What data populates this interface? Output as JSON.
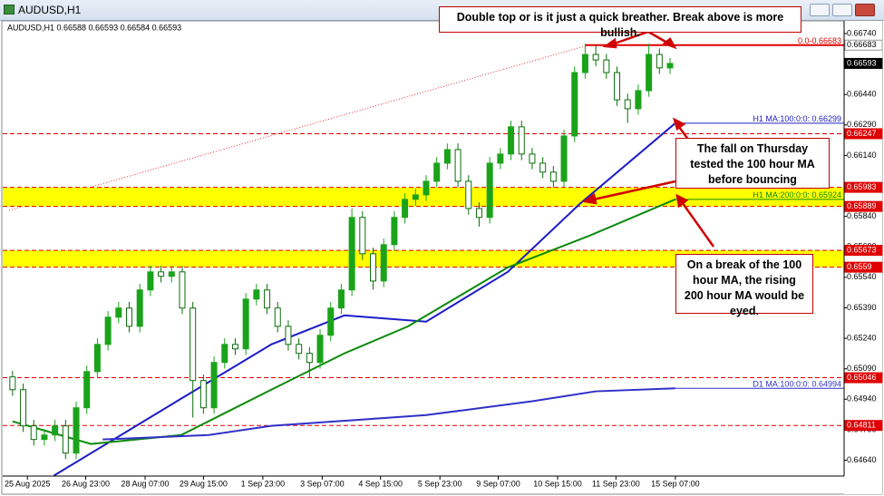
{
  "window": {
    "title": "AUDUSD,H1"
  },
  "chart_data": {
    "type": "candlestick",
    "symbol_info": "AUDUSD,H1  0.66588 0.66593 0.66584 0.66593",
    "up_color": "#1aa31a",
    "down_color": "#0b6e0b",
    "xlim": [
      -0.5,
      78.5
    ],
    "ylim": [
      0.64495,
      0.66807
    ],
    "yticks": [
      {
        "value": 0.6674,
        "label": "0.66740"
      },
      {
        "value": 0.6659,
        "label": "0.66590"
      },
      {
        "value": 0.6644,
        "label": "0.66440"
      },
      {
        "value": 0.6629,
        "label": "0.66290"
      },
      {
        "value": 0.6614,
        "label": "0.66140"
      },
      {
        "value": 0.6599,
        "label": "0.65990"
      },
      {
        "value": 0.6584,
        "label": "0.65840"
      },
      {
        "value": 0.6569,
        "label": "0.65690"
      },
      {
        "value": 0.6554,
        "label": "0.65540"
      },
      {
        "value": 0.6539,
        "label": "0.65390"
      },
      {
        "value": 0.6524,
        "label": "0.65240"
      },
      {
        "value": 0.6509,
        "label": "0.65090"
      },
      {
        "value": 0.6494,
        "label": "0.64940"
      },
      {
        "value": 0.6479,
        "label": "0.64790"
      },
      {
        "value": 0.6464,
        "label": "0.64640"
      }
    ],
    "xticks": [
      {
        "value": 1.4,
        "label": "25 Aug 2025"
      },
      {
        "value": 6.9,
        "label": "26 Aug 23:00"
      },
      {
        "value": 12.5,
        "label": "28 Aug 07:00"
      },
      {
        "value": 18,
        "label": "29 Aug 15:00"
      },
      {
        "value": 23.6,
        "label": "1 Sep 23:00"
      },
      {
        "value": 29.2,
        "label": "3 Sep 07:00"
      },
      {
        "value": 34.7,
        "label": "4 Sep 15:00"
      },
      {
        "value": 40.3,
        "label": "5 Sep 23:00"
      },
      {
        "value": 45.8,
        "label": "9 Sep 07:00"
      },
      {
        "value": 51.4,
        "label": "10 Sep 15:00"
      },
      {
        "value": 56.9,
        "label": "11 Sep 23:00"
      },
      {
        "value": 62.5,
        "label": "15 Sep 07:00"
      }
    ],
    "candles": [
      [
        0.6505,
        0.6508,
        0.64957,
        0.64987
      ],
      [
        0.64987,
        0.65017,
        0.64779,
        0.64809
      ],
      [
        0.64809,
        0.64839,
        0.64712,
        0.64742
      ],
      [
        0.64742,
        0.64794,
        0.64712,
        0.64764
      ],
      [
        0.64764,
        0.64839,
        0.64734,
        0.64809
      ],
      [
        0.64809,
        0.64839,
        0.64645,
        0.64675
      ],
      [
        0.64675,
        0.64928,
        0.64645,
        0.64898
      ],
      [
        0.64898,
        0.65106,
        0.64868,
        0.65076
      ],
      [
        0.65076,
        0.6524,
        0.65046,
        0.6521
      ],
      [
        0.6521,
        0.65374,
        0.6518,
        0.65344
      ],
      [
        0.65344,
        0.65419,
        0.65314,
        0.65389
      ],
      [
        0.65389,
        0.65419,
        0.65269,
        0.65299
      ],
      [
        0.65299,
        0.65508,
        0.65269,
        0.65478
      ],
      [
        0.65478,
        0.65597,
        0.65448,
        0.65567
      ],
      [
        0.65567,
        0.65597,
        0.65515,
        0.65545
      ],
      [
        0.65545,
        0.65597,
        0.65515,
        0.65567
      ],
      [
        0.65567,
        0.65597,
        0.65359,
        0.65389
      ],
      [
        0.65389,
        0.65419,
        0.6485,
        0.65032
      ],
      [
        0.65032,
        0.65062,
        0.64868,
        0.64898
      ],
      [
        0.64898,
        0.65151,
        0.64868,
        0.65121
      ],
      [
        0.65121,
        0.6524,
        0.65091,
        0.6521
      ],
      [
        0.6521,
        0.6524,
        0.65158,
        0.65188
      ],
      [
        0.65188,
        0.65463,
        0.65158,
        0.65433
      ],
      [
        0.65433,
        0.65508,
        0.65403,
        0.65478
      ],
      [
        0.65478,
        0.65508,
        0.65359,
        0.65389
      ],
      [
        0.65389,
        0.65419,
        0.65269,
        0.65299
      ],
      [
        0.65299,
        0.65329,
        0.6518,
        0.6521
      ],
      [
        0.6521,
        0.6524,
        0.65136,
        0.65166
      ],
      [
        0.65166,
        0.65196,
        0.65046,
        0.65121
      ],
      [
        0.65121,
        0.65285,
        0.65091,
        0.65255
      ],
      [
        0.65255,
        0.65419,
        0.65225,
        0.65389
      ],
      [
        0.65389,
        0.65508,
        0.65359,
        0.65478
      ],
      [
        0.65478,
        0.6588,
        0.65448,
        0.65835
      ],
      [
        0.65835,
        0.65865,
        0.65626,
        0.65656
      ],
      [
        0.65656,
        0.65686,
        0.6548,
        0.65522
      ],
      [
        0.65522,
        0.65731,
        0.65492,
        0.65701
      ],
      [
        0.65701,
        0.65865,
        0.65671,
        0.65835
      ],
      [
        0.65835,
        0.65954,
        0.65805,
        0.65924
      ],
      [
        0.65924,
        0.65976,
        0.65894,
        0.65946
      ],
      [
        0.65946,
        0.66043,
        0.65916,
        0.66013
      ],
      [
        0.66013,
        0.66132,
        0.65983,
        0.66102
      ],
      [
        0.66102,
        0.66199,
        0.66072,
        0.66169
      ],
      [
        0.66169,
        0.66199,
        0.65983,
        0.66013
      ],
      [
        0.66013,
        0.66043,
        0.65849,
        0.65879
      ],
      [
        0.65879,
        0.65909,
        0.6579,
        0.65835
      ],
      [
        0.65835,
        0.66132,
        0.65805,
        0.66102
      ],
      [
        0.66102,
        0.66177,
        0.66072,
        0.66147
      ],
      [
        0.66147,
        0.66311,
        0.66117,
        0.66281
      ],
      [
        0.66281,
        0.66311,
        0.66117,
        0.66147
      ],
      [
        0.66147,
        0.66177,
        0.66072,
        0.66102
      ],
      [
        0.66102,
        0.66132,
        0.66028,
        0.66058
      ],
      [
        0.66058,
        0.66088,
        0.65983,
        0.66013
      ],
      [
        0.66013,
        0.66266,
        0.65983,
        0.66236
      ],
      [
        0.66236,
        0.66578,
        0.66206,
        0.66548
      ],
      [
        0.66548,
        0.6669,
        0.66518,
        0.66637
      ],
      [
        0.66637,
        0.6668,
        0.6658,
        0.6661
      ],
      [
        0.6661,
        0.6664,
        0.66518,
        0.66548
      ],
      [
        0.66548,
        0.66578,
        0.66384,
        0.66414
      ],
      [
        0.66414,
        0.66444,
        0.663,
        0.6637
      ],
      [
        0.6637,
        0.66489,
        0.6634,
        0.66459
      ],
      [
        0.66459,
        0.6669,
        0.66429,
        0.66637
      ],
      [
        0.66637,
        0.66667,
        0.66541,
        0.66571
      ],
      [
        0.66571,
        0.6662,
        0.66541,
        0.66593
      ]
    ],
    "lines": [
      {
        "name": "H1 MA 100",
        "color": "#1c1cc8",
        "x": [
          3.9,
          15.9,
          24.4,
          31.3,
          39,
          46.7,
          53.5,
          62.5
        ],
        "values": [
          0.64564,
          0.64943,
          0.6521,
          0.65353,
          0.65322,
          0.65567,
          0.65902,
          0.66299
        ]
      },
      {
        "name": "H1 MA 200",
        "color": "#0a8a0a",
        "x": [
          0,
          7.4,
          15.9,
          24.4,
          31.3,
          37.3,
          46.7,
          54.4,
          62.5
        ],
        "values": [
          0.64831,
          0.6472,
          0.64764,
          0.64987,
          0.65166,
          0.65299,
          0.65589,
          0.65745,
          0.65924
        ]
      },
      {
        "name": "D1 MA 100",
        "color": "#3030c8",
        "x": [
          8.5,
          18.5,
          24.4,
          39,
          49,
          55,
          62.5
        ],
        "values": [
          0.64742,
          0.64764,
          0.64809,
          0.64862,
          0.6493,
          0.64979,
          0.64994
        ]
      }
    ],
    "zones": [
      [
        0.65889,
        0.65983
      ],
      [
        0.6559,
        0.65673
      ]
    ],
    "zone_color": "#ffff00",
    "levels": [
      {
        "value": 0.66683,
        "color": "#e00000",
        "line": "solid",
        "x0": 54,
        "tag": "0.0-0.66683",
        "box": "#ffffff"
      },
      {
        "value": 0.66593,
        "box": "#000000"
      },
      {
        "value": 0.66299,
        "color": "#2020c0",
        "line": "solid",
        "x0": 62.5,
        "tag": "H1 MA:100:0:0: 0.66299"
      },
      {
        "value": 0.66247,
        "color": "#e00000",
        "line": "dash",
        "box": "#e00000"
      },
      {
        "value": 0.65983,
        "color": "#e00000",
        "line": "dash",
        "box": "#e00000"
      },
      {
        "value": 0.65924,
        "color": "#0a8a0a",
        "line": "solid",
        "x0": 62.5,
        "tag": "H1 MA:200:0:0: 0.65924"
      },
      {
        "value": 0.65889,
        "color": "#e00000",
        "line": "dash",
        "box": "#e00000"
      },
      {
        "value": 0.65673,
        "color": "#e00000",
        "line": "dash",
        "box": "#e00000"
      },
      {
        "value": 0.6559,
        "color": "#e00000",
        "line": "dash",
        "box": "#e00000"
      },
      {
        "value": 0.65046,
        "color": "#e00000",
        "line": "dash",
        "box": "#e00000"
      },
      {
        "value": 0.64994,
        "color": "#3030c8",
        "line": "solid",
        "x0": 62.5,
        "tag": "D1 MA:100:0:0: 0.64994"
      },
      {
        "value": 0.64811,
        "color": "#e00000",
        "line": "dash",
        "box": "#e00000"
      }
    ],
    "annotations": [
      "Double top or is it just a quick breather. Break above is more bullish.",
      "The fall on Thursday tested the 100 hour MA before bouncing",
      "On a break of the 100 hour MA, the rising 200 hour MA would be eyed."
    ]
  }
}
